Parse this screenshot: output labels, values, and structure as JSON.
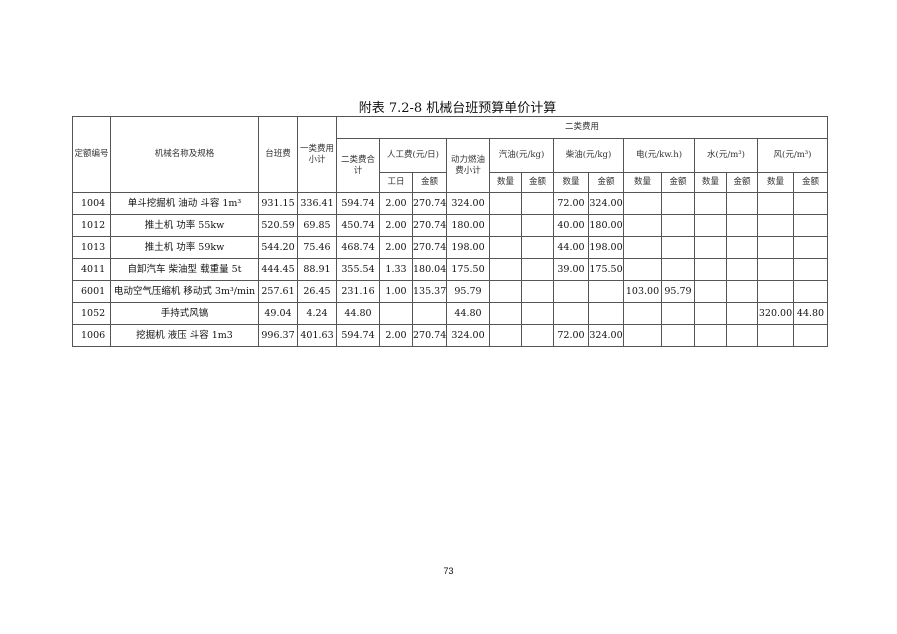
{
  "title": "附表 7.2-8 机械台班预算单价计算",
  "headers": {
    "code": "定额编号",
    "name": "机械名称及规格",
    "shift_cost": "台班费",
    "class1": "一类费用小计",
    "class2_group": "二类费用",
    "class2_total": "二类费合计",
    "labor": "人工费(元/日)",
    "labor_days": "工日",
    "amount": "金额",
    "fuel_subtotal": "动力燃油费小计",
    "gasoline": "汽油(元/kg)",
    "diesel": "柴油(元/kg)",
    "electric": "电(元/kw.h)",
    "water": "水(元/m³)",
    "wind": "风(元/m³)",
    "qty": "数量"
  },
  "rows": [
    [
      "1004",
      "单斗挖掘机 油动 斗容 1m³",
      "931.15",
      "336.41",
      "594.74",
      "2.00",
      "270.74",
      "324.00",
      "",
      "",
      "72.00",
      "324.00",
      "",
      "",
      "",
      "",
      "",
      ""
    ],
    [
      "1012",
      "推土机 功率 55kw",
      "520.59",
      "69.85",
      "450.74",
      "2.00",
      "270.74",
      "180.00",
      "",
      "",
      "40.00",
      "180.00",
      "",
      "",
      "",
      "",
      "",
      ""
    ],
    [
      "1013",
      "推土机 功率 59kw",
      "544.20",
      "75.46",
      "468.74",
      "2.00",
      "270.74",
      "198.00",
      "",
      "",
      "44.00",
      "198.00",
      "",
      "",
      "",
      "",
      "",
      ""
    ],
    [
      "4011",
      "自卸汽车 柴油型 载重量 5t",
      "444.45",
      "88.91",
      "355.54",
      "1.33",
      "180.04",
      "175.50",
      "",
      "",
      "39.00",
      "175.50",
      "",
      "",
      "",
      "",
      "",
      ""
    ],
    [
      "6001",
      "电动空气压缩机 移动式 3m³/min",
      "257.61",
      "26.45",
      "231.16",
      "1.00",
      "135.37",
      "95.79",
      "",
      "",
      "",
      "",
      "103.00",
      "95.79",
      "",
      "",
      "",
      ""
    ],
    [
      "1052",
      "手持式风镐",
      "49.04",
      "4.24",
      "44.80",
      "",
      "",
      "44.80",
      "",
      "",
      "",
      "",
      "",
      "",
      "",
      "",
      "320.00",
      "44.80"
    ],
    [
      "1006",
      "挖掘机 液压 斗容 1m3",
      "996.37",
      "401.63",
      "594.74",
      "2.00",
      "270.74",
      "324.00",
      "",
      "",
      "72.00",
      "324.00",
      "",
      "",
      "",
      "",
      "",
      ""
    ]
  ],
  "page_number": "73"
}
